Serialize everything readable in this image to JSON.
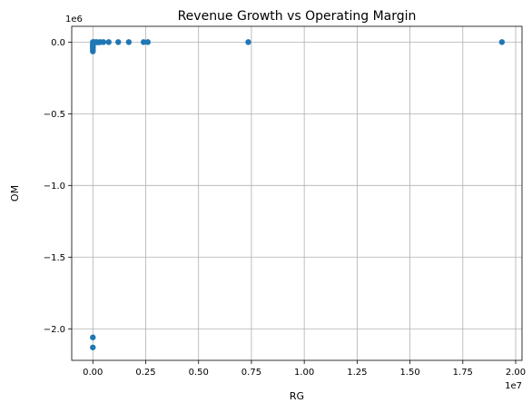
{
  "chart_data": {
    "type": "scatter",
    "title": "Revenue Growth vs Operating Margin",
    "xlabel": "RG",
    "ylabel": "OM",
    "x_offset_label": "1e7",
    "y_offset_label": "1e6",
    "x_scale": 10000000,
    "y_scale": 1000000,
    "xlim": [
      -1000000,
      20300000
    ],
    "ylim": [
      -2220000,
      110000
    ],
    "x_ticks": [
      0,
      2500000,
      5000000,
      7500000,
      10000000,
      12500000,
      15000000,
      17500000,
      20000000
    ],
    "x_tick_labels": [
      "0.00",
      "0.25",
      "0.50",
      "0.75",
      "1.00",
      "1.25",
      "1.50",
      "1.75",
      "2.00"
    ],
    "y_ticks": [
      0,
      -500000,
      -1000000,
      -1500000,
      -2000000
    ],
    "y_tick_labels": [
      "0.0",
      "−0.5",
      "−1.0",
      "−1.5",
      "−2.0"
    ],
    "grid": true,
    "marker_color": "#1f77b4",
    "points": [
      {
        "x": 0,
        "y": 0
      },
      {
        "x": 15000,
        "y": -5000
      },
      {
        "x": 30000,
        "y": -10000
      },
      {
        "x": 50000,
        "y": -3000
      },
      {
        "x": 80000,
        "y": 0
      },
      {
        "x": 120000,
        "y": -1000
      },
      {
        "x": 180000,
        "y": 0
      },
      {
        "x": 250000,
        "y": -2000
      },
      {
        "x": 350000,
        "y": 0
      },
      {
        "x": 500000,
        "y": 0
      },
      {
        "x": 750000,
        "y": 0
      },
      {
        "x": 1200000,
        "y": 0
      },
      {
        "x": 1700000,
        "y": 0
      },
      {
        "x": 2400000,
        "y": 0
      },
      {
        "x": 2600000,
        "y": 0
      },
      {
        "x": 7350000,
        "y": 0
      },
      {
        "x": 19350000,
        "y": 0
      },
      {
        "x": 0,
        "y": -15000
      },
      {
        "x": 0,
        "y": -25000
      },
      {
        "x": 0,
        "y": -40000
      },
      {
        "x": 0,
        "y": -55000
      },
      {
        "x": 0,
        "y": -65000
      },
      {
        "x": 5000,
        "y": -30000
      },
      {
        "x": 0,
        "y": -2060000
      },
      {
        "x": 0,
        "y": -2130000
      }
    ]
  }
}
